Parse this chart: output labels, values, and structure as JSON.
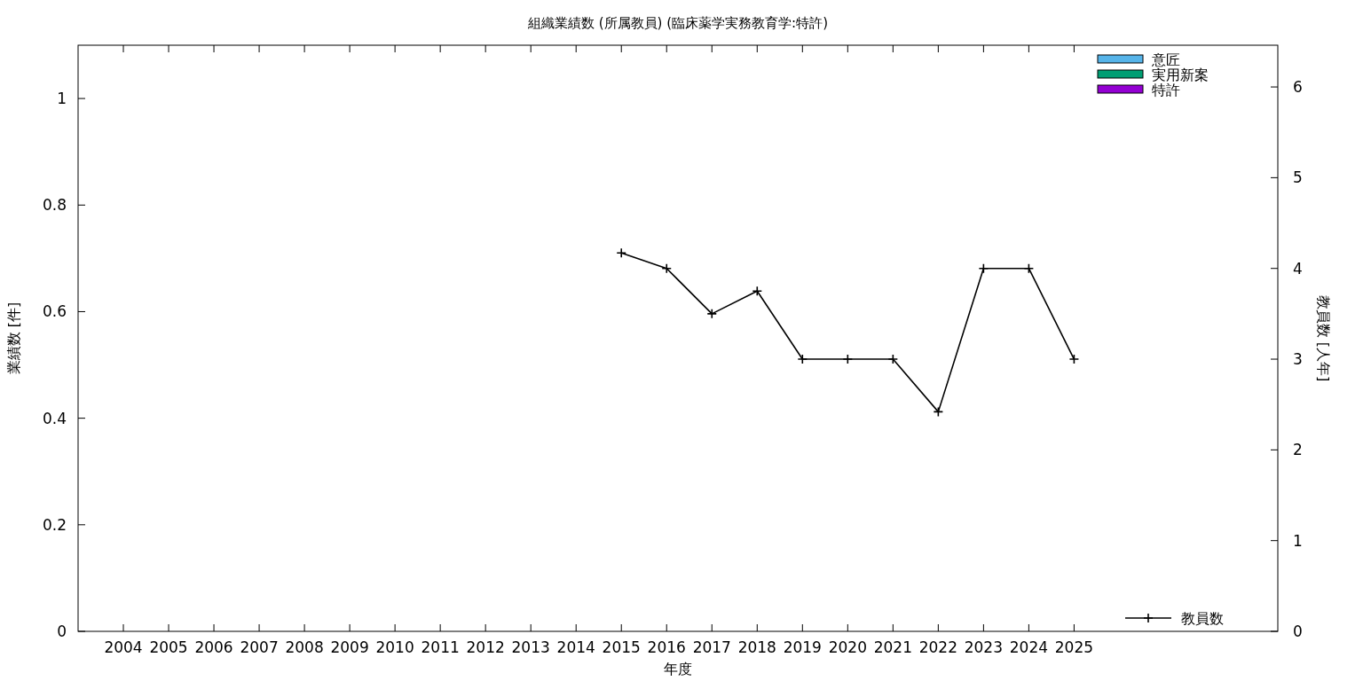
{
  "chart_data": {
    "type": "bar",
    "title": "組織業績数 (所属教員) (臨床薬学実務教育学:特許)",
    "xlabel": "年度",
    "ylabel": "業績数 [件]",
    "y2label": "教員数 [人年]",
    "legend": "right",
    "x": [
      2004,
      2005,
      2006,
      2007,
      2008,
      2009,
      2010,
      2011,
      2012,
      2013,
      2014,
      2015,
      2016,
      2017,
      2018,
      2019,
      2020,
      2021,
      2022,
      2023,
      2024,
      2025
    ],
    "xlim": [
      2003,
      2029.5
    ],
    "xticks": [
      2004,
      2005,
      2006,
      2007,
      2008,
      2009,
      2010,
      2011,
      2012,
      2013,
      2014,
      2015,
      2016,
      2017,
      2018,
      2019,
      2020,
      2021,
      2022,
      2023,
      2024,
      2025
    ],
    "ylim": [
      0,
      1.1
    ],
    "yticks": [
      {
        "value": 0,
        "label": "0"
      },
      {
        "value": 0.2,
        "label": "0.2"
      },
      {
        "value": 0.4,
        "label": "0.4"
      },
      {
        "value": 0.6,
        "label": "0.6"
      },
      {
        "value": 0.8,
        "label": "0.8"
      },
      {
        "value": 1,
        "label": "1"
      }
    ],
    "y2lim": [
      0,
      6.46
    ],
    "y2ticks": [
      0,
      1,
      2,
      3,
      4,
      5,
      6
    ],
    "series": [
      {
        "name": "意匠",
        "color": "#56b4e9",
        "values": [
          0,
          0,
          0,
          0,
          0,
          0,
          0,
          0,
          0,
          0,
          0,
          0,
          0,
          0,
          0,
          0,
          0,
          0,
          0,
          0,
          0,
          0
        ]
      },
      {
        "name": "実用新案",
        "color": "#009e73",
        "values": [
          0,
          0,
          0,
          0,
          0,
          0,
          0,
          0,
          0,
          0,
          0,
          0,
          0,
          0,
          0,
          0,
          0,
          0,
          0,
          0,
          0,
          0
        ]
      },
      {
        "name": "特許",
        "color": "#9400d3",
        "values": [
          0,
          0,
          0,
          0,
          0,
          0,
          0,
          0,
          0,
          0,
          0,
          0,
          0,
          0,
          0,
          0,
          0,
          0,
          0,
          0,
          0,
          0
        ]
      },
      {
        "name": "教員数",
        "type": "line",
        "axis": "y2",
        "color": "#000000",
        "marker": "cross",
        "values": [
          null,
          null,
          null,
          null,
          null,
          null,
          null,
          null,
          null,
          null,
          null,
          4.17,
          4,
          3.5,
          3.75,
          3,
          3,
          3,
          2.42,
          4,
          4,
          3
        ]
      }
    ]
  }
}
